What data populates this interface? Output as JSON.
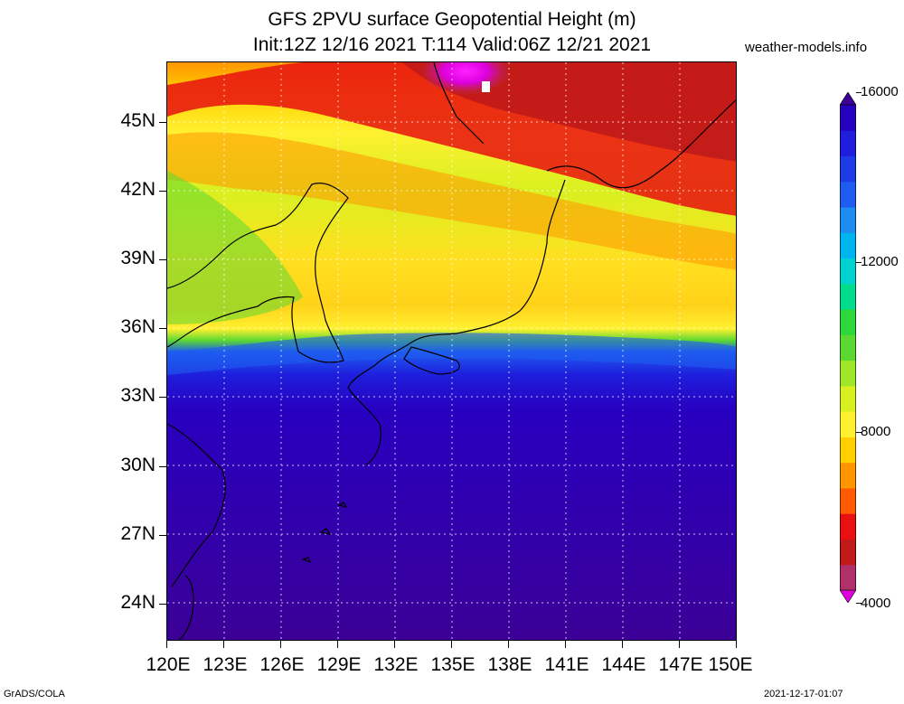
{
  "title": {
    "line1": "GFS 2PVU surface Geopotential Height (m)",
    "line2": "Init:12Z 12/16 2021 T:114 Valid:06Z 12/21 2021"
  },
  "site_label": "weather-models.info",
  "footer": {
    "left": "GrADS/COLA",
    "right": "2021-12-17-01:07"
  },
  "map": {
    "lon_range": [
      120,
      150
    ],
    "lat_range": [
      22.5,
      48
    ],
    "lat_labels": [
      "45N",
      "42N",
      "39N",
      "36N",
      "33N",
      "30N",
      "27N",
      "24N"
    ],
    "lon_labels": [
      "120E",
      "123E",
      "126E",
      "129E",
      "132E",
      "135E",
      "138E",
      "141E",
      "144E",
      "147E",
      "150E"
    ],
    "gridlines": "dotted",
    "coastlines": "black"
  },
  "colorbar": {
    "labels": [
      "16000",
      "12000",
      "8000",
      "4000"
    ],
    "colors": [
      "#dd00dd",
      "#b0306a",
      "#c01a1a",
      "#e81010",
      "#ff5a00",
      "#ff9500",
      "#ffcf00",
      "#fff030",
      "#d9f020",
      "#a0e628",
      "#5cd832",
      "#2dd83c",
      "#00dc8c",
      "#00d2d2",
      "#00b4f0",
      "#1e8cf0",
      "#1e5cf0",
      "#1e3ce6",
      "#1e1edc",
      "#2800c0",
      "#3c0096"
    ]
  }
}
